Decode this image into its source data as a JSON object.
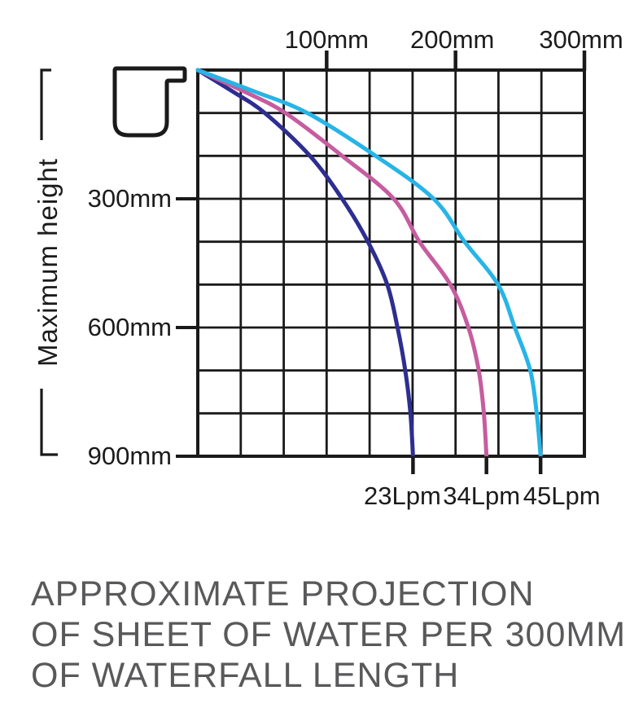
{
  "caption": {
    "lines": [
      "APPROXIMATE PROJECTION",
      "OF SHEET OF WATER PER 300MM",
      "OF WATERFALL LENGTH"
    ]
  },
  "icon": {
    "name": "waterfall-spout-cross-section"
  },
  "chart_data": {
    "type": "line",
    "title": "Approximate projection of sheet of water per 300mm of waterfall length",
    "grid": {
      "on": true,
      "cols": 9,
      "rows": 9
    },
    "x_axis": {
      "position": "top",
      "unit": "mm",
      "range_mm": [
        0,
        300
      ],
      "tick_values_mm": [
        100,
        200,
        300
      ],
      "ticks": [
        "100mm",
        "200mm",
        "300mm"
      ]
    },
    "y_axis": {
      "label": "Maximum height",
      "unit": "mm",
      "direction": "down",
      "range_mm": [
        0,
        900
      ],
      "tick_values_mm": [
        300,
        600,
        900
      ],
      "ticks": [
        "300mm",
        "600mm",
        "900mm"
      ]
    },
    "axis_color": "#1a1a1a",
    "series": [
      {
        "name": "23Lpm",
        "color": "#2d2e90",
        "end_projection_mm": 167,
        "points_mm": [
          [
            0,
            0
          ],
          [
            27,
            50
          ],
          [
            52,
            100
          ],
          [
            87,
            200
          ],
          [
            112,
            300
          ],
          [
            132,
            400
          ],
          [
            147,
            500
          ],
          [
            155,
            600
          ],
          [
            161,
            700
          ],
          [
            165,
            800
          ],
          [
            167,
            900
          ]
        ]
      },
      {
        "name": "34Lpm",
        "color": "#c55d9f",
        "end_projection_mm": 224,
        "points_mm": [
          [
            0,
            0
          ],
          [
            36,
            50
          ],
          [
            68,
            100
          ],
          [
            112,
            200
          ],
          [
            152,
            300
          ],
          [
            172,
            400
          ],
          [
            196,
            500
          ],
          [
            210,
            600
          ],
          [
            218,
            700
          ],
          [
            222,
            800
          ],
          [
            224,
            900
          ]
        ]
      },
      {
        "name": "45Lpm",
        "color": "#28b4e6",
        "end_projection_mm": 266,
        "points_mm": [
          [
            0,
            0
          ],
          [
            44,
            50
          ],
          [
            85,
            100
          ],
          [
            138,
            200
          ],
          [
            183,
            300
          ],
          [
            207,
            400
          ],
          [
            233,
            500
          ],
          [
            246,
            600
          ],
          [
            258,
            700
          ],
          [
            263,
            800
          ],
          [
            266,
            900
          ]
        ]
      }
    ]
  }
}
